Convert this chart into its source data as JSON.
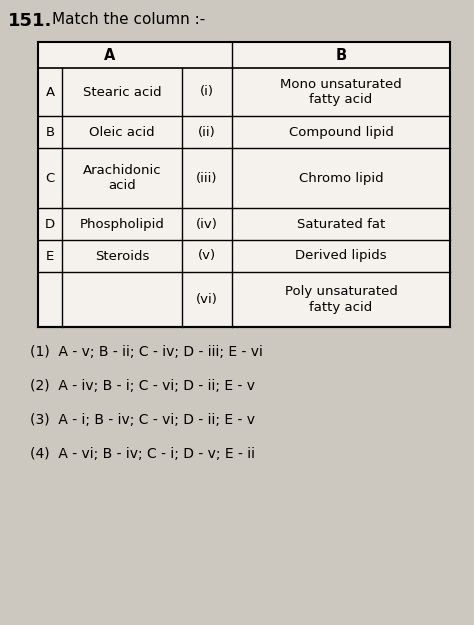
{
  "title_num": "151.",
  "title_text": "Match the column :-",
  "bg_color": "#ccc8c0",
  "table_bg": "#f5f2ee",
  "header_A": "A",
  "header_B": "B",
  "col_A_labels": [
    "A",
    "B",
    "C",
    "D",
    "E",
    ""
  ],
  "col_A_items": [
    "Stearic acid",
    "Oleic acid",
    "Arachidonic\nacid",
    "Phospholipid",
    "Steroids",
    ""
  ],
  "col_mid_items": [
    "(i)",
    "(ii)",
    "(iii)",
    "(iv)",
    "(v)",
    "(vi)"
  ],
  "col_B_items": [
    "Mono unsaturated\nfatty acid",
    "Compound lipid",
    "Chromo lipid",
    "Saturated fat",
    "Derived lipids",
    "Poly unsaturated\nfatty acid"
  ],
  "options": [
    "(1)  A - v; B - ii; C - iv; D - iii; E - vi",
    "(2)  A - iv; B - i; C - vi; D - ii; E - v",
    "(3)  A - i; B - iv; C - vi; D - ii; E - v",
    "(4)  A - vi; B - iv; C - i; D - v; E - ii"
  ],
  "font_size_title_num": 13,
  "font_size_title": 11,
  "font_size_table": 9.5,
  "font_size_options": 10
}
